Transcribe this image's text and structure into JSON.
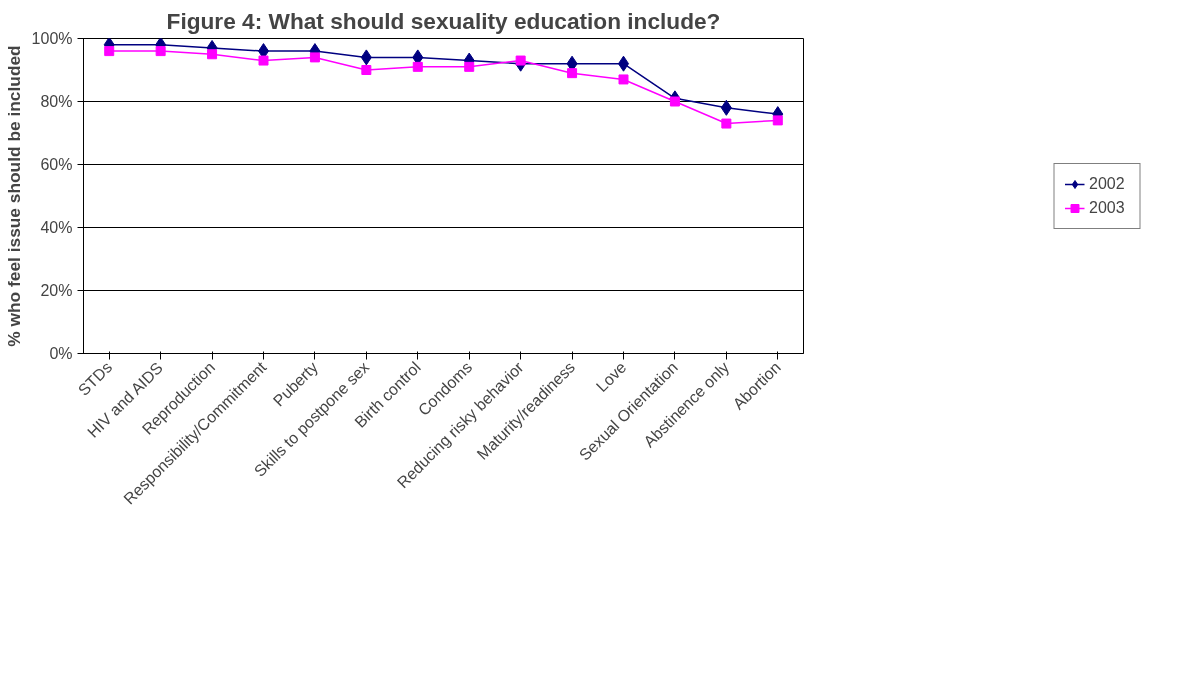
{
  "chart_data": {
    "type": "line",
    "title": "Figure 4: What should sexuality education include?",
    "ylabel": "% who feel issue should be included",
    "categories": [
      "STDs",
      "HIV and AIDS",
      "Reproduction",
      "Responsibility/Commitment",
      "Puberty",
      "Skills to postpone sex",
      "Birth control",
      "Condoms",
      "Reducing risky behavior",
      "Maturity/readiness",
      "Love",
      "Sexual Orientation",
      "Abstinence only",
      "Abortion"
    ],
    "series": [
      {
        "name": "2002",
        "color": "#000080",
        "marker": "diamond",
        "values": [
          98,
          98,
          97,
          96,
          96,
          94,
          94,
          93,
          92,
          92,
          92,
          81,
          78,
          76
        ]
      },
      {
        "name": "2003",
        "color": "#ff00ff",
        "marker": "square",
        "values": [
          96,
          96,
          95,
          93,
          94,
          90,
          91,
          91,
          93,
          89,
          87,
          80,
          73,
          74
        ]
      }
    ],
    "ylim": [
      0,
      100
    ],
    "yticks": [
      {
        "value": 0,
        "label": "0%"
      },
      {
        "value": 20,
        "label": "20%"
      },
      {
        "value": 40,
        "label": "40%"
      },
      {
        "value": 60,
        "label": "60%"
      },
      {
        "value": 80,
        "label": "80%"
      },
      {
        "value": 100,
        "label": "100%"
      }
    ],
    "grid": "y",
    "legend": "right",
    "line_style": "solid"
  }
}
